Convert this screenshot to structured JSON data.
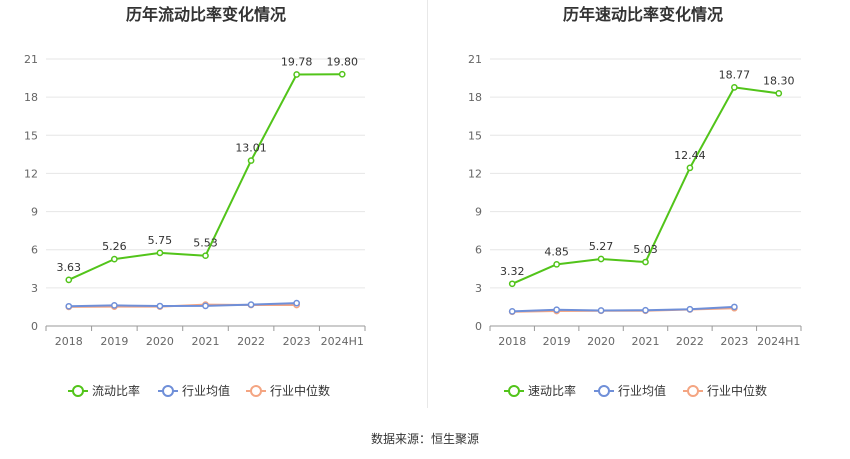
{
  "source_text": "数据来源：恒生聚源",
  "chart_data": [
    {
      "type": "line",
      "title": "历年流动比率变化情况",
      "categories": [
        "2018",
        "2019",
        "2020",
        "2021",
        "2022",
        "2023",
        "2024H1"
      ],
      "ylim": [
        0,
        21
      ],
      "yticks": [
        0,
        3,
        6,
        9,
        12,
        15,
        18,
        21
      ],
      "grid": true,
      "legend_position": "bottom",
      "series": [
        {
          "name": "流动比率",
          "color": "#52c41a",
          "values": [
            3.63,
            5.26,
            5.75,
            5.53,
            13.01,
            19.78,
            19.8
          ],
          "labels": [
            "3.63",
            "5.26",
            "5.75",
            "5.53",
            "13.01",
            "19.78",
            "19.80"
          ],
          "show_labels": true
        },
        {
          "name": "行业均值",
          "color": "#6f8fd8",
          "values": [
            1.55,
            1.62,
            1.57,
            1.58,
            1.68,
            1.8,
            null
          ],
          "show_labels": false
        },
        {
          "name": "行业中位数",
          "color": "#f4a582",
          "values": [
            1.5,
            1.52,
            1.52,
            1.68,
            1.65,
            1.65,
            null
          ],
          "show_labels": false
        }
      ]
    },
    {
      "type": "line",
      "title": "历年速动比率变化情况",
      "categories": [
        "2018",
        "2019",
        "2020",
        "2021",
        "2022",
        "2023",
        "2024H1"
      ],
      "ylim": [
        0,
        21
      ],
      "yticks": [
        0,
        3,
        6,
        9,
        12,
        15,
        18,
        21
      ],
      "grid": true,
      "legend_position": "bottom",
      "series": [
        {
          "name": "速动比率",
          "color": "#52c41a",
          "values": [
            3.32,
            4.85,
            5.27,
            5.03,
            12.44,
            18.77,
            18.3
          ],
          "labels": [
            "3.32",
            "4.85",
            "5.27",
            "5.03",
            "12.44",
            "18.77",
            "18.30"
          ],
          "show_labels": true
        },
        {
          "name": "行业均值",
          "color": "#6f8fd8",
          "values": [
            1.15,
            1.28,
            1.22,
            1.24,
            1.32,
            1.5,
            null
          ],
          "show_labels": false
        },
        {
          "name": "行业中位数",
          "color": "#f4a582",
          "values": [
            1.12,
            1.18,
            1.2,
            1.2,
            1.3,
            1.4,
            null
          ],
          "show_labels": false
        }
      ]
    }
  ]
}
